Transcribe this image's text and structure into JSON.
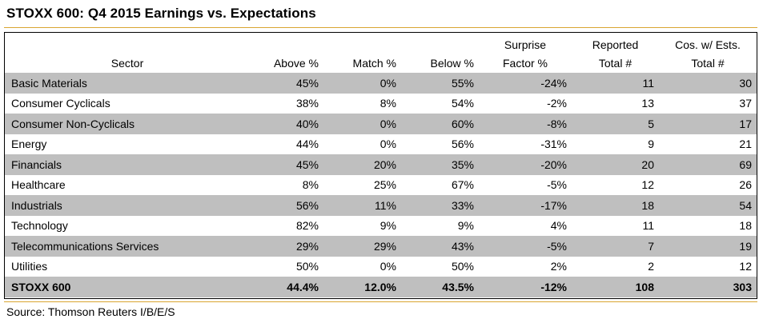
{
  "title": "STOXX 600: Q4 2015 Earnings vs. Expectations",
  "columns": [
    {
      "line1": "",
      "line2": "Sector"
    },
    {
      "line1": "",
      "line2": "Above %"
    },
    {
      "line1": "",
      "line2": "Match %"
    },
    {
      "line1": "",
      "line2": "Below %"
    },
    {
      "line1": "Surprise",
      "line2": "Factor %"
    },
    {
      "line1": "Reported",
      "line2": "Total #"
    },
    {
      "line1": "Cos. w/ Ests.",
      "line2": "Total #"
    }
  ],
  "rows": [
    [
      "Basic Materials",
      "45%",
      "0%",
      "55%",
      "-24%",
      "11",
      "30"
    ],
    [
      "Consumer Cyclicals",
      "38%",
      "8%",
      "54%",
      "-2%",
      "13",
      "37"
    ],
    [
      "Consumer Non-Cyclicals",
      "40%",
      "0%",
      "60%",
      "-8%",
      "5",
      "17"
    ],
    [
      "Energy",
      "44%",
      "0%",
      "56%",
      "-31%",
      "9",
      "21"
    ],
    [
      "Financials",
      "45%",
      "20%",
      "35%",
      "-20%",
      "20",
      "69"
    ],
    [
      "Healthcare",
      "8%",
      "25%",
      "67%",
      "-5%",
      "12",
      "26"
    ],
    [
      "Industrials",
      "56%",
      "11%",
      "33%",
      "-17%",
      "18",
      "54"
    ],
    [
      "Technology",
      "82%",
      "9%",
      "9%",
      "4%",
      "11",
      "18"
    ],
    [
      "Telecommunications Services",
      "29%",
      "29%",
      "43%",
      "-5%",
      "7",
      "19"
    ],
    [
      "Utilities",
      "50%",
      "0%",
      "50%",
      "2%",
      "2",
      "12"
    ]
  ],
  "total": [
    "STOXX 600",
    "44.4%",
    "12.0%",
    "43.5%",
    "-12%",
    "108",
    "303"
  ],
  "source": "Source: Thomson Reuters I/B/E/S",
  "colors": {
    "accent_rule": "#d9a531",
    "row_shade": "#bfbfbf"
  }
}
